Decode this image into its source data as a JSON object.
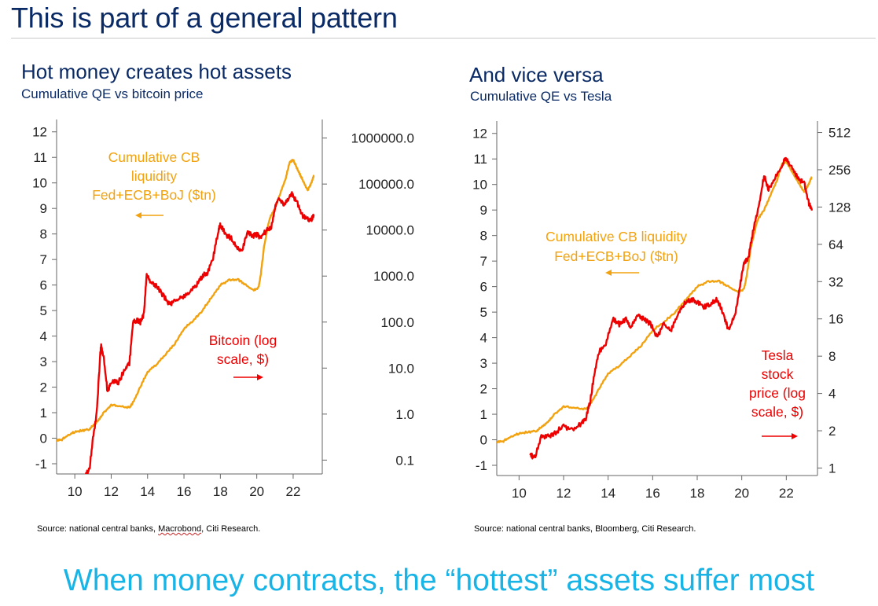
{
  "slide": {
    "title": "This is part of a general pattern",
    "bottom_message": "When money contracts, the “hottest” assets suffer most"
  },
  "colors": {
    "liquidity": "#f2a20e",
    "asset": "#ee0000",
    "title": "#0a2a66",
    "message": "#19b4e6"
  },
  "chart_data": [
    {
      "type": "line",
      "title": "Hot money creates hot assets",
      "subtitle": "Cumulative QE vs bitcoin price",
      "source": "Source: national central banks, Macrobond, Citi Research.",
      "x_ticks": [
        "10",
        "12",
        "14",
        "16",
        "18",
        "20",
        "22"
      ],
      "xlim": [
        2009.0,
        2023.6
      ],
      "y_left": {
        "ticks": [
          "12",
          "11",
          "10",
          "9",
          "8",
          "7",
          "6",
          "5",
          "4",
          "3",
          "2",
          "1",
          "0",
          "-1"
        ],
        "range": [
          -1.4,
          12.3
        ]
      },
      "y_right": {
        "scale": "log",
        "ticks": [
          "1000000.0",
          "100000.0",
          "10000.0",
          "1000.0",
          "100.0",
          "10.0",
          "1.0",
          "0.1"
        ],
        "range": [
          0.05,
          2000000
        ]
      },
      "annotations": {
        "liquidity_lines": [
          "Cumulative CB",
          "liquidity",
          "Fed+ECB+BoJ ($tn)"
        ],
        "asset_lines": [
          "Bitcoin (log",
          "scale, $)"
        ]
      },
      "series": [
        {
          "name": "Cumulative CB liquidity Fed+ECB+BoJ ($tn)",
          "axis": "left",
          "x": [
            2009.0,
            2009.3,
            2009.6,
            2010.0,
            2010.4,
            2010.8,
            2011.0,
            2011.3,
            2011.6,
            2012.0,
            2012.5,
            2013.0,
            2013.2,
            2013.6,
            2014.0,
            2014.5,
            2015.0,
            2015.5,
            2016.0,
            2016.5,
            2017.0,
            2017.5,
            2018.0,
            2018.5,
            2019.0,
            2019.4,
            2019.8,
            2020.1,
            2020.2,
            2020.4,
            2020.7,
            2021.0,
            2021.3,
            2021.6,
            2021.8,
            2022.0,
            2022.2,
            2022.4,
            2022.6,
            2022.8,
            2023.0,
            2023.15
          ],
          "values": [
            -0.1,
            -0.05,
            0.1,
            0.25,
            0.3,
            0.35,
            0.5,
            0.7,
            1.0,
            1.3,
            1.25,
            1.2,
            1.4,
            2.0,
            2.6,
            2.9,
            3.3,
            3.7,
            4.3,
            4.6,
            5.0,
            5.5,
            6.0,
            6.2,
            6.2,
            6.0,
            5.8,
            5.9,
            6.3,
            7.5,
            8.6,
            9.0,
            9.6,
            10.2,
            10.8,
            10.9,
            10.6,
            10.3,
            10.0,
            9.7,
            10.0,
            10.3
          ]
        },
        {
          "name": "Bitcoin (log scale, $)",
          "axis": "right",
          "x": [
            2010.6,
            2010.8,
            2011.0,
            2011.2,
            2011.4,
            2011.45,
            2011.6,
            2011.8,
            2012.0,
            2012.4,
            2012.8,
            2013.0,
            2013.2,
            2013.4,
            2013.6,
            2013.8,
            2013.95,
            2014.2,
            2014.5,
            2014.9,
            2015.2,
            2015.5,
            2015.9,
            2016.3,
            2016.7,
            2017.0,
            2017.3,
            2017.6,
            2017.9,
            2018.0,
            2018.3,
            2018.6,
            2018.9,
            2019.2,
            2019.5,
            2019.8,
            2020.0,
            2020.2,
            2020.5,
            2020.8,
            2021.0,
            2021.2,
            2021.5,
            2021.8,
            2021.95,
            2022.2,
            2022.5,
            2022.8,
            2023.0,
            2023.15
          ],
          "values": [
            0.05,
            0.06,
            0.3,
            1.0,
            20,
            31,
            15,
            3,
            5,
            5,
            10,
            13,
            100,
            110,
            100,
            150,
            1100,
            700,
            600,
            350,
            250,
            280,
            350,
            450,
            650,
            1000,
            1200,
            2500,
            10000,
            13000,
            8000,
            6500,
            4000,
            3600,
            9000,
            7500,
            8000,
            7000,
            9500,
            12000,
            30000,
            50000,
            35000,
            55000,
            60000,
            40000,
            21000,
            17000,
            17000,
            22000
          ]
        }
      ]
    },
    {
      "type": "line",
      "title": "And vice versa",
      "subtitle": "Cumulative QE vs Tesla",
      "source": "Source: national central banks, Bloomberg, Citi Research.",
      "x_ticks": [
        "10",
        "12",
        "14",
        "16",
        "18",
        "20",
        "22"
      ],
      "xlim": [
        2009.0,
        2023.4
      ],
      "y_left": {
        "ticks": [
          "12",
          "11",
          "10",
          "9",
          "8",
          "7",
          "6",
          "5",
          "4",
          "3",
          "2",
          "1",
          "0",
          "-1"
        ],
        "range": [
          -1.4,
          12.3
        ]
      },
      "y_right": {
        "scale": "log",
        "ticks": [
          "512",
          "256",
          "128",
          "64",
          "32",
          "16",
          "8",
          "4",
          "2",
          "1"
        ],
        "range": [
          0.87,
          580
        ]
      },
      "annotations": {
        "liquidity_lines": [
          "Cumulative CB liquidity",
          "Fed+ECB+BoJ ($tn)"
        ],
        "asset_lines": [
          "Tesla",
          "stock",
          "price (log",
          "scale, $)"
        ]
      },
      "series": [
        {
          "name": "Cumulative CB liquidity Fed+ECB+BoJ ($tn)",
          "axis": "left",
          "x": [
            2009.0,
            2009.3,
            2009.6,
            2010.0,
            2010.4,
            2010.8,
            2011.0,
            2011.3,
            2011.6,
            2012.0,
            2012.5,
            2013.0,
            2013.2,
            2013.6,
            2014.0,
            2014.5,
            2015.0,
            2015.5,
            2016.0,
            2016.5,
            2017.0,
            2017.5,
            2018.0,
            2018.5,
            2019.0,
            2019.4,
            2019.8,
            2020.1,
            2020.2,
            2020.4,
            2020.7,
            2021.0,
            2021.3,
            2021.6,
            2021.8,
            2022.0,
            2022.2,
            2022.4,
            2022.6,
            2022.8,
            2023.0,
            2023.15
          ],
          "values": [
            -0.1,
            -0.05,
            0.1,
            0.25,
            0.3,
            0.35,
            0.5,
            0.7,
            1.0,
            1.3,
            1.25,
            1.2,
            1.4,
            2.0,
            2.6,
            2.9,
            3.3,
            3.7,
            4.3,
            4.6,
            5.0,
            5.5,
            6.0,
            6.2,
            6.2,
            6.0,
            5.8,
            5.9,
            6.3,
            7.5,
            8.6,
            9.0,
            9.6,
            10.2,
            10.8,
            10.9,
            10.6,
            10.3,
            10.0,
            9.7,
            10.0,
            10.3
          ]
        },
        {
          "name": "Tesla stock price (log scale, $)",
          "axis": "right",
          "x": [
            2010.5,
            2010.7,
            2011.0,
            2011.3,
            2011.6,
            2012.0,
            2012.4,
            2012.8,
            2013.0,
            2013.2,
            2013.4,
            2013.6,
            2013.9,
            2014.2,
            2014.5,
            2014.8,
            2015.0,
            2015.3,
            2015.6,
            2015.9,
            2016.2,
            2016.5,
            2016.8,
            2017.1,
            2017.4,
            2017.7,
            2018.0,
            2018.3,
            2018.6,
            2018.9,
            2019.2,
            2019.4,
            2019.7,
            2019.9,
            2020.1,
            2020.3,
            2020.5,
            2020.8,
            2021.0,
            2021.2,
            2021.5,
            2021.8,
            2021.95,
            2022.2,
            2022.5,
            2022.8,
            2023.0,
            2023.15
          ],
          "values": [
            1.3,
            1.2,
            1.8,
            1.8,
            1.9,
            2.2,
            2.0,
            2.3,
            2.5,
            3.5,
            6,
            8.8,
            10,
            16,
            14.5,
            16,
            13.5,
            17,
            16,
            14.5,
            11.5,
            14.5,
            12.8,
            17,
            21,
            23,
            22,
            20,
            21,
            23,
            17,
            13,
            17,
            28,
            45,
            50,
            80,
            140,
            230,
            180,
            220,
            270,
            320,
            280,
            220,
            200,
            140,
            120
          ]
        }
      ]
    }
  ]
}
